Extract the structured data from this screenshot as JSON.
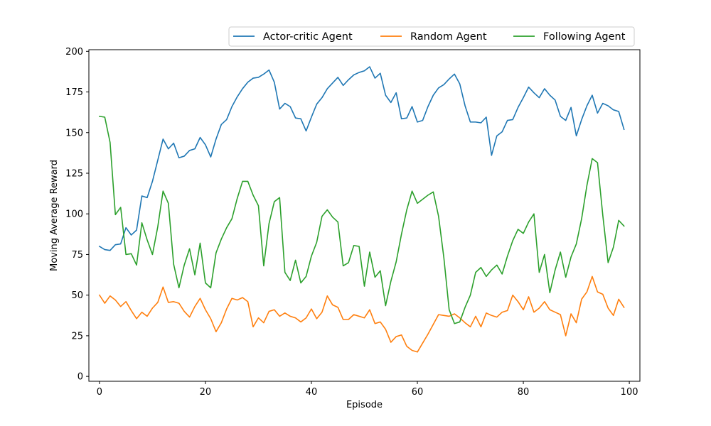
{
  "chart_data": {
    "type": "line",
    "title": "",
    "xlabel": "Episode",
    "ylabel": "Moving Average Reward",
    "xlim": [
      -2,
      102
    ],
    "ylim": [
      -3,
      201
    ],
    "xticks": [
      0,
      20,
      40,
      60,
      80,
      100
    ],
    "yticks": [
      0,
      25,
      50,
      75,
      100,
      125,
      150,
      175,
      200
    ],
    "grid": false,
    "legend_position": "top-right, above the axes",
    "series": [
      {
        "name": "Actor-critic Agent",
        "color": "#1f77b4",
        "values": [
          80,
          78,
          77.5,
          81,
          81.5,
          91.5,
          87,
          90,
          111,
          110,
          120,
          133,
          146,
          140,
          143.5,
          134.5,
          135.5,
          139,
          140,
          147,
          142.5,
          135,
          146,
          155,
          158,
          166,
          172,
          177,
          181,
          183.5,
          184,
          186,
          188.5,
          181,
          164.5,
          168,
          166,
          159,
          158.5,
          151,
          159.5,
          167.5,
          171.5,
          177,
          180.5,
          184,
          179,
          182.5,
          185.5,
          187,
          188,
          190.5,
          183.5,
          186.5,
          173,
          168.5,
          174.5,
          158.5,
          159,
          166,
          156.5,
          157.5,
          166,
          173,
          177.5,
          179.5,
          183,
          186,
          180,
          166.5,
          156.5,
          156.5,
          156,
          159.5,
          136,
          148,
          150.5,
          157.5,
          158,
          165.5,
          171.5,
          178,
          174.5,
          171.5,
          177,
          173,
          170,
          160,
          157.5,
          165.5,
          148,
          158,
          166.5,
          173,
          162,
          168,
          166.5,
          164,
          163,
          152
        ]
      },
      {
        "name": "Random Agent",
        "color": "#ff7f0e",
        "values": [
          50,
          45,
          49.5,
          47,
          43,
          46,
          40.5,
          35.5,
          39.5,
          37,
          42,
          45.5,
          55,
          45.5,
          46,
          45,
          40,
          36.5,
          43,
          48,
          41,
          35.5,
          27.5,
          33,
          41.5,
          48,
          47,
          48.5,
          46,
          30.5,
          36,
          33,
          40,
          41,
          37,
          39,
          37,
          36,
          33.5,
          36,
          41.5,
          35.5,
          39.5,
          49.5,
          44,
          42.5,
          35,
          35,
          38,
          37,
          36,
          41,
          32.5,
          33.5,
          29,
          21,
          24.5,
          25.5,
          18.5,
          16,
          15,
          20.5,
          26,
          32,
          38,
          37.5,
          37,
          38.5,
          36,
          33,
          30.5,
          37,
          30.5,
          39,
          37.5,
          36.5,
          39.5,
          40.5,
          50,
          46,
          41,
          49,
          39.5,
          42,
          46,
          41,
          39.5,
          38,
          25,
          38.5,
          33,
          47.5,
          52,
          61.5,
          52,
          50.5,
          42,
          37.5,
          47.5,
          42.5
        ]
      },
      {
        "name": "Following Agent",
        "color": "#2ca02c",
        "values": [
          160,
          159.5,
          144,
          99.5,
          104,
          75,
          75.5,
          68.5,
          94.5,
          84,
          75,
          92,
          114,
          106.5,
          69,
          54.5,
          68.5,
          78.5,
          62.5,
          82,
          57.5,
          54.5,
          76,
          84.5,
          91.5,
          97,
          109.5,
          120,
          120,
          111.5,
          105,
          68,
          94,
          107.5,
          110,
          64,
          59,
          71.5,
          57.5,
          61.5,
          74,
          82.5,
          98.5,
          102.5,
          98,
          95,
          68,
          70,
          80.5,
          80,
          55.5,
          76.5,
          61,
          65,
          43.5,
          58.5,
          70.5,
          87.5,
          102.5,
          114,
          106.5,
          109,
          111.5,
          113.5,
          98.5,
          73,
          41,
          32.5,
          33.5,
          42.5,
          50,
          64,
          67,
          61.5,
          65.5,
          68.5,
          63,
          74,
          83.5,
          90.5,
          88,
          95,
          100,
          64,
          75,
          51.5,
          65.5,
          76.5,
          61,
          73.5,
          81.5,
          97,
          117.5,
          134,
          131.5,
          99,
          70,
          79.5,
          96,
          92.5
        ]
      }
    ]
  }
}
